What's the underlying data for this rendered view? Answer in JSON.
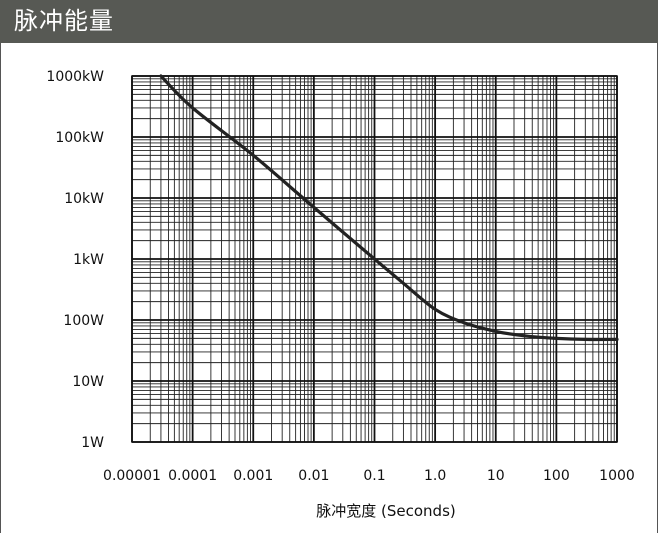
{
  "header": {
    "title": "脉冲能量"
  },
  "colors": {
    "header_bg": "#575954",
    "header_text": "#ffffff",
    "curve": "#222222",
    "grid": "#111111"
  },
  "chart_data": {
    "type": "line",
    "title": "",
    "xlabel": "脉冲宽度 (Seconds)",
    "ylabel": "",
    "x_scale": "log",
    "y_scale": "log",
    "xlim": [
      1e-05,
      1000
    ],
    "ylim": [
      1,
      1000000
    ],
    "grid": true,
    "x_tick_labels": [
      "0.00001",
      "0.0001",
      "0.001",
      "0.01",
      "0.1",
      "1.0",
      "10",
      "100",
      "1000"
    ],
    "y_tick_labels": [
      "1W",
      "10W",
      "100W",
      "1kW",
      "10kW",
      "100kW",
      "1000kW"
    ],
    "series": [
      {
        "x": [
          3e-05,
          0.0001,
          0.001,
          0.01,
          0.1,
          0.3,
          1,
          3,
          10,
          30,
          100,
          300,
          1000
        ],
        "y": [
          1000000,
          300000,
          50000,
          7000,
          1000,
          400,
          150,
          90,
          65,
          55,
          50,
          48,
          48
        ]
      }
    ]
  }
}
